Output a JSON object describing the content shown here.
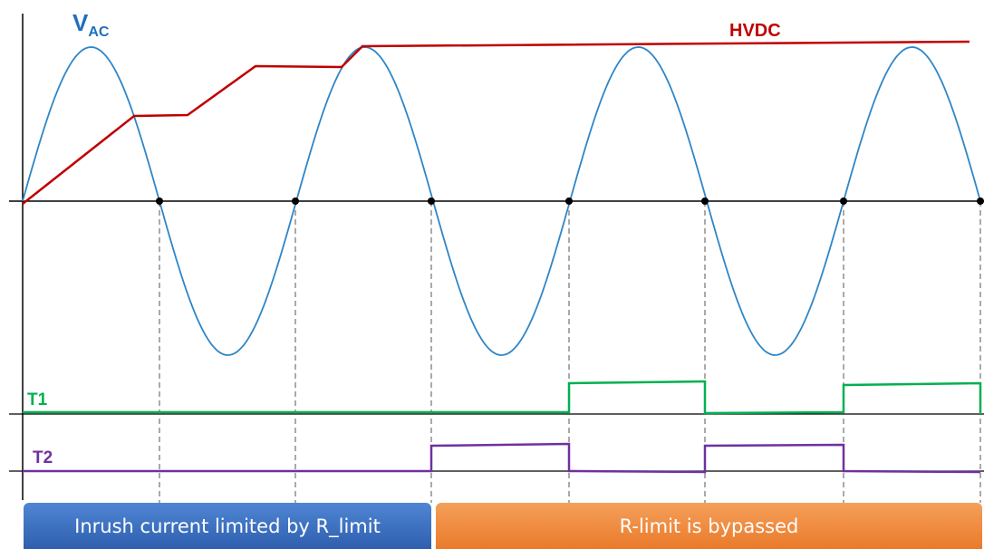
{
  "labels": {
    "vac_main": "V",
    "vac_sub": "AC",
    "hvdc": "HVDC",
    "t1": "T1",
    "t2": "T2"
  },
  "phases": {
    "inrush": "Inrush current limited by R_limit",
    "bypassed": "R-limit is bypassed"
  }
}
